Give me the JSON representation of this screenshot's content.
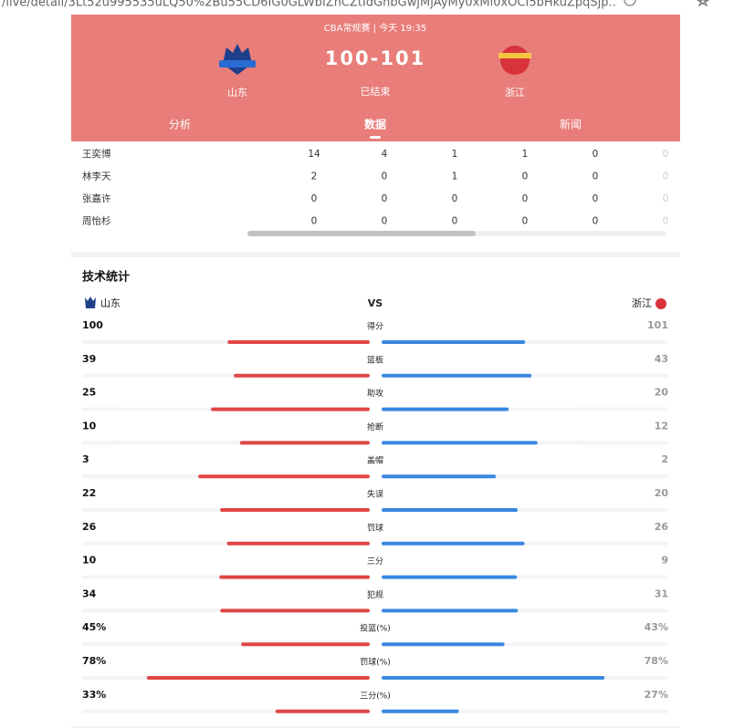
{
  "browser": {
    "url": "/live/detail/3Lt52u995535uLQ50%2Bu55CD6IG0GLWbIZnCZtIdGnbGwjMjAyMy0xMi0xOCI5bHkuZpqSjp..."
  },
  "header": {
    "match_info": "CBA常规赛 | 今天 19:35",
    "score": "100-101",
    "status": "已结束",
    "home_team": "山东",
    "away_team": "浙江"
  },
  "tabs": [
    "分析",
    "数据",
    "新闻"
  ],
  "players": {
    "rows": [
      {
        "name": "王奕博",
        "cells": [
          14,
          4,
          1,
          1,
          0,
          0
        ]
      },
      {
        "name": "林李天",
        "cells": [
          2,
          0,
          1,
          0,
          0,
          0
        ]
      },
      {
        "name": "张嘉许",
        "cells": [
          0,
          0,
          0,
          0,
          0,
          0
        ]
      },
      {
        "name": "周怡杉",
        "cells": [
          0,
          0,
          0,
          0,
          0,
          0
        ]
      }
    ]
  },
  "stats": {
    "title": "技术统计",
    "home_team": "山东",
    "vs": "VS",
    "away_team": "浙江",
    "rows": [
      {
        "label": "得分",
        "home": 100,
        "away": 101
      },
      {
        "label": "篮板",
        "home": 39,
        "away": 43
      },
      {
        "label": "助攻",
        "home": 25,
        "away": 20
      },
      {
        "label": "抢断",
        "home": 10,
        "away": 12
      },
      {
        "label": "盖帽",
        "home": 3,
        "away": 2
      },
      {
        "label": "失误",
        "home": 22,
        "away": 20
      },
      {
        "label": "罚球",
        "home": 26,
        "away": 26
      },
      {
        "label": "三分",
        "home": 10,
        "away": 9
      },
      {
        "label": "犯规",
        "home": 34,
        "away": 31
      },
      {
        "label": "投篮(%)",
        "home": 45,
        "away": 43,
        "home_label": "45%",
        "away_label": "43%"
      },
      {
        "label": "罚球(%)",
        "home": 78,
        "away": 78,
        "home_label": "78%",
        "away_label": "78%"
      },
      {
        "label": "三分(%)",
        "home": 33,
        "away": 27,
        "home_label": "33%",
        "away_label": "27%"
      }
    ]
  }
}
